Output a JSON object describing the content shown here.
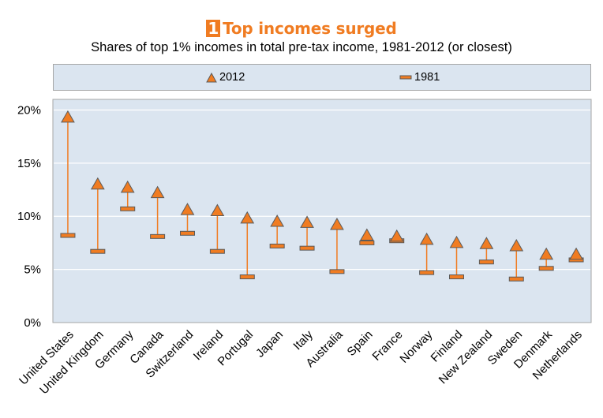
{
  "header": {
    "badge": "1",
    "title": "Top incomes surged",
    "subtitle": "Shares of top 1% incomes in total pre-tax income, 1981-2012 (or closest)"
  },
  "legend": {
    "series_2012": "2012",
    "series_1981": "1981"
  },
  "colors": {
    "accent": "#f07c22",
    "plot_bg": "#dbe5f0",
    "marker_fill": "#f07c22",
    "marker_stroke": "#5a5a5a",
    "grid": "#ffffff"
  },
  "chart_data": {
    "type": "scatter",
    "title": "Top incomes surged",
    "subtitle": "Shares of top 1% incomes in total pre-tax income, 1981-2012 (or closest)",
    "categories": [
      "United States",
      "United Kingdom",
      "Germany",
      "Canada",
      "Switzerland",
      "Ireland",
      "Portugal",
      "Japan",
      "Italy",
      "Australia",
      "Spain",
      "France",
      "Norway",
      "Finland",
      "New Zealand",
      "Sweden",
      "Denmark",
      "Netherlands"
    ],
    "series": [
      {
        "name": "2012",
        "marker": "triangle",
        "values": [
          19.3,
          13.0,
          12.7,
          12.2,
          10.6,
          10.5,
          9.8,
          9.5,
          9.4,
          9.2,
          8.2,
          8.1,
          7.8,
          7.5,
          7.4,
          7.2,
          6.4,
          6.4
        ]
      },
      {
        "name": "1981",
        "marker": "dash",
        "values": [
          8.2,
          6.7,
          10.7,
          8.1,
          8.4,
          6.7,
          4.3,
          7.2,
          7.0,
          4.8,
          7.5,
          7.7,
          4.7,
          4.3,
          5.7,
          4.1,
          5.1,
          5.9
        ]
      }
    ],
    "yticks": [
      "0%",
      "5%",
      "10%",
      "15%",
      "20%"
    ],
    "ylim": [
      0,
      21
    ],
    "grid": true,
    "legend_position": "top"
  }
}
